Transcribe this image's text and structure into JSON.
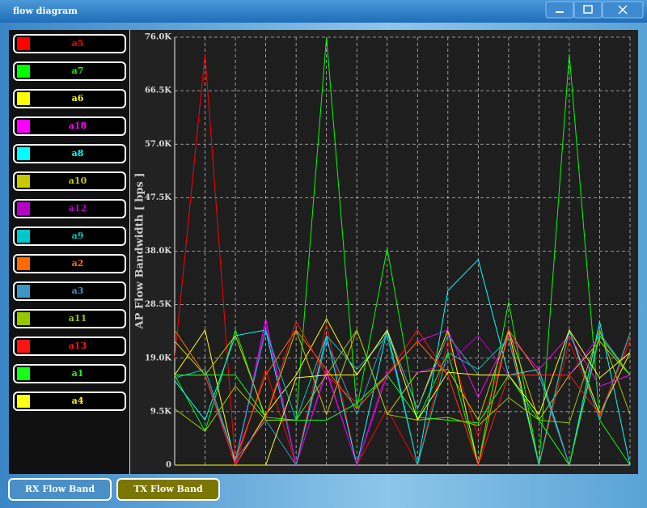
{
  "window": {
    "title": "flow diagram"
  },
  "chart_data": {
    "type": "line",
    "ylabel": "AP Flow Bandwidth [ bps ]",
    "categories": [
      null,
      null,
      null,
      null,
      null,
      null,
      null,
      null,
      null,
      null,
      null,
      null,
      null,
      null,
      null,
      null
    ],
    "ylim": [
      0,
      76000
    ],
    "yticks": [
      0,
      {
        "value": 9500,
        "label": "9.5K"
      },
      {
        "value": 19000,
        "label": "19.0K"
      },
      {
        "value": 28500,
        "label": "28.5K"
      },
      {
        "value": 38000,
        "label": "38.0K"
      },
      {
        "value": 47500,
        "label": "47.5K"
      },
      {
        "value": 57000,
        "label": "57.0K"
      },
      {
        "value": 66500,
        "label": "66.5K"
      },
      {
        "value": 76000,
        "label": "76.0K"
      }
    ],
    "grid": true,
    "legend": "left",
    "series": [
      {
        "name": "a5",
        "color": "#ff0000",
        "values": [
          19000,
          73000,
          0,
          17000,
          0,
          25000,
          0,
          10000,
          0,
          22000,
          5000,
          23000,
          0,
          22000,
          8500,
          23000
        ]
      },
      {
        "name": "a7",
        "color": "#00ff00",
        "values": [
          16000,
          6000,
          24000,
          8000,
          8000,
          76000,
          10000,
          38500,
          8000,
          20000,
          0,
          29000,
          0,
          73000,
          8000,
          0
        ]
      },
      {
        "name": "a6",
        "color": "#ffff00",
        "values": [
          16000,
          24000,
          0,
          9000,
          16000,
          26000,
          16000,
          24000,
          10000,
          24000,
          0,
          24000,
          0,
          24000,
          9000,
          20000
        ]
      },
      {
        "name": "a18",
        "color": "#ff00ff",
        "values": [
          16000,
          16000,
          0,
          26000,
          0,
          17000,
          0,
          16000,
          22000,
          24000,
          12000,
          23000,
          17000,
          23000,
          14000,
          16000
        ]
      },
      {
        "name": "a8",
        "color": "#00ffff",
        "values": [
          15000,
          8000,
          23000,
          24000,
          0,
          23000,
          0,
          24000,
          0,
          31000,
          36500,
          16000,
          17000,
          0,
          25500,
          0
        ]
      },
      {
        "name": "a10",
        "color": "#c8c800",
        "values": [
          22000,
          16000,
          23000,
          8500,
          24000,
          9000,
          24000,
          9000,
          16500,
          17000,
          8000,
          24000,
          8000,
          16000,
          22000,
          16000
        ]
      },
      {
        "name": "a12",
        "color": "#b400c8",
        "values": [
          16000,
          16000,
          0,
          25000,
          0,
          16500,
          0,
          17000,
          16500,
          18000,
          23000,
          16000,
          16000,
          16000,
          23000,
          16000
        ]
      },
      {
        "name": "a9",
        "color": "#00c8c8",
        "values": [
          15500,
          17000,
          1000,
          24000,
          8000,
          23000,
          17000,
          23000,
          0,
          20000,
          17000,
          22500,
          0,
          24000,
          8000,
          23500
        ]
      },
      {
        "name": "a2",
        "color": "#ff6a00",
        "values": [
          24000,
          16000,
          1000,
          16000,
          24000,
          17000,
          10000,
          16000,
          22000,
          16000,
          0,
          24000,
          16000,
          0,
          23000,
          16000
        ]
      },
      {
        "name": "a3",
        "color": "#3c96c8",
        "values": [
          16000,
          16000,
          1000,
          8000,
          0,
          22000,
          9000,
          24000,
          10000,
          23000,
          16000,
          16000,
          16000,
          0,
          23500,
          16000
        ]
      },
      {
        "name": "a11",
        "color": "#96c800",
        "values": [
          10000,
          6000,
          14000,
          8000,
          8000,
          16000,
          24000,
          9000,
          8000,
          8500,
          7000,
          12000,
          8000,
          7500,
          24000,
          9000
        ]
      },
      {
        "name": "a13",
        "color": "#ff1414",
        "values": [
          16000,
          16000,
          0,
          8500,
          25500,
          16000,
          11000,
          16000,
          24000,
          16000,
          0,
          16000,
          16000,
          16000,
          9000,
          22000
        ]
      },
      {
        "name": "a1",
        "color": "#14ff14",
        "values": [
          16000,
          16000,
          16000,
          8500,
          8000,
          8000,
          11000,
          16000,
          8500,
          8000,
          7500,
          16000,
          8000,
          0,
          23000,
          16000
        ]
      },
      {
        "name": "a4",
        "color": "#ffff14",
        "values": [
          0,
          0,
          0,
          0,
          15500,
          16000,
          16000,
          24000,
          8000,
          16500,
          16000,
          16000,
          9000,
          24000,
          15500,
          20000
        ]
      }
    ]
  },
  "buttons": [
    "RX Flow Band",
    "TX Flow Band"
  ]
}
